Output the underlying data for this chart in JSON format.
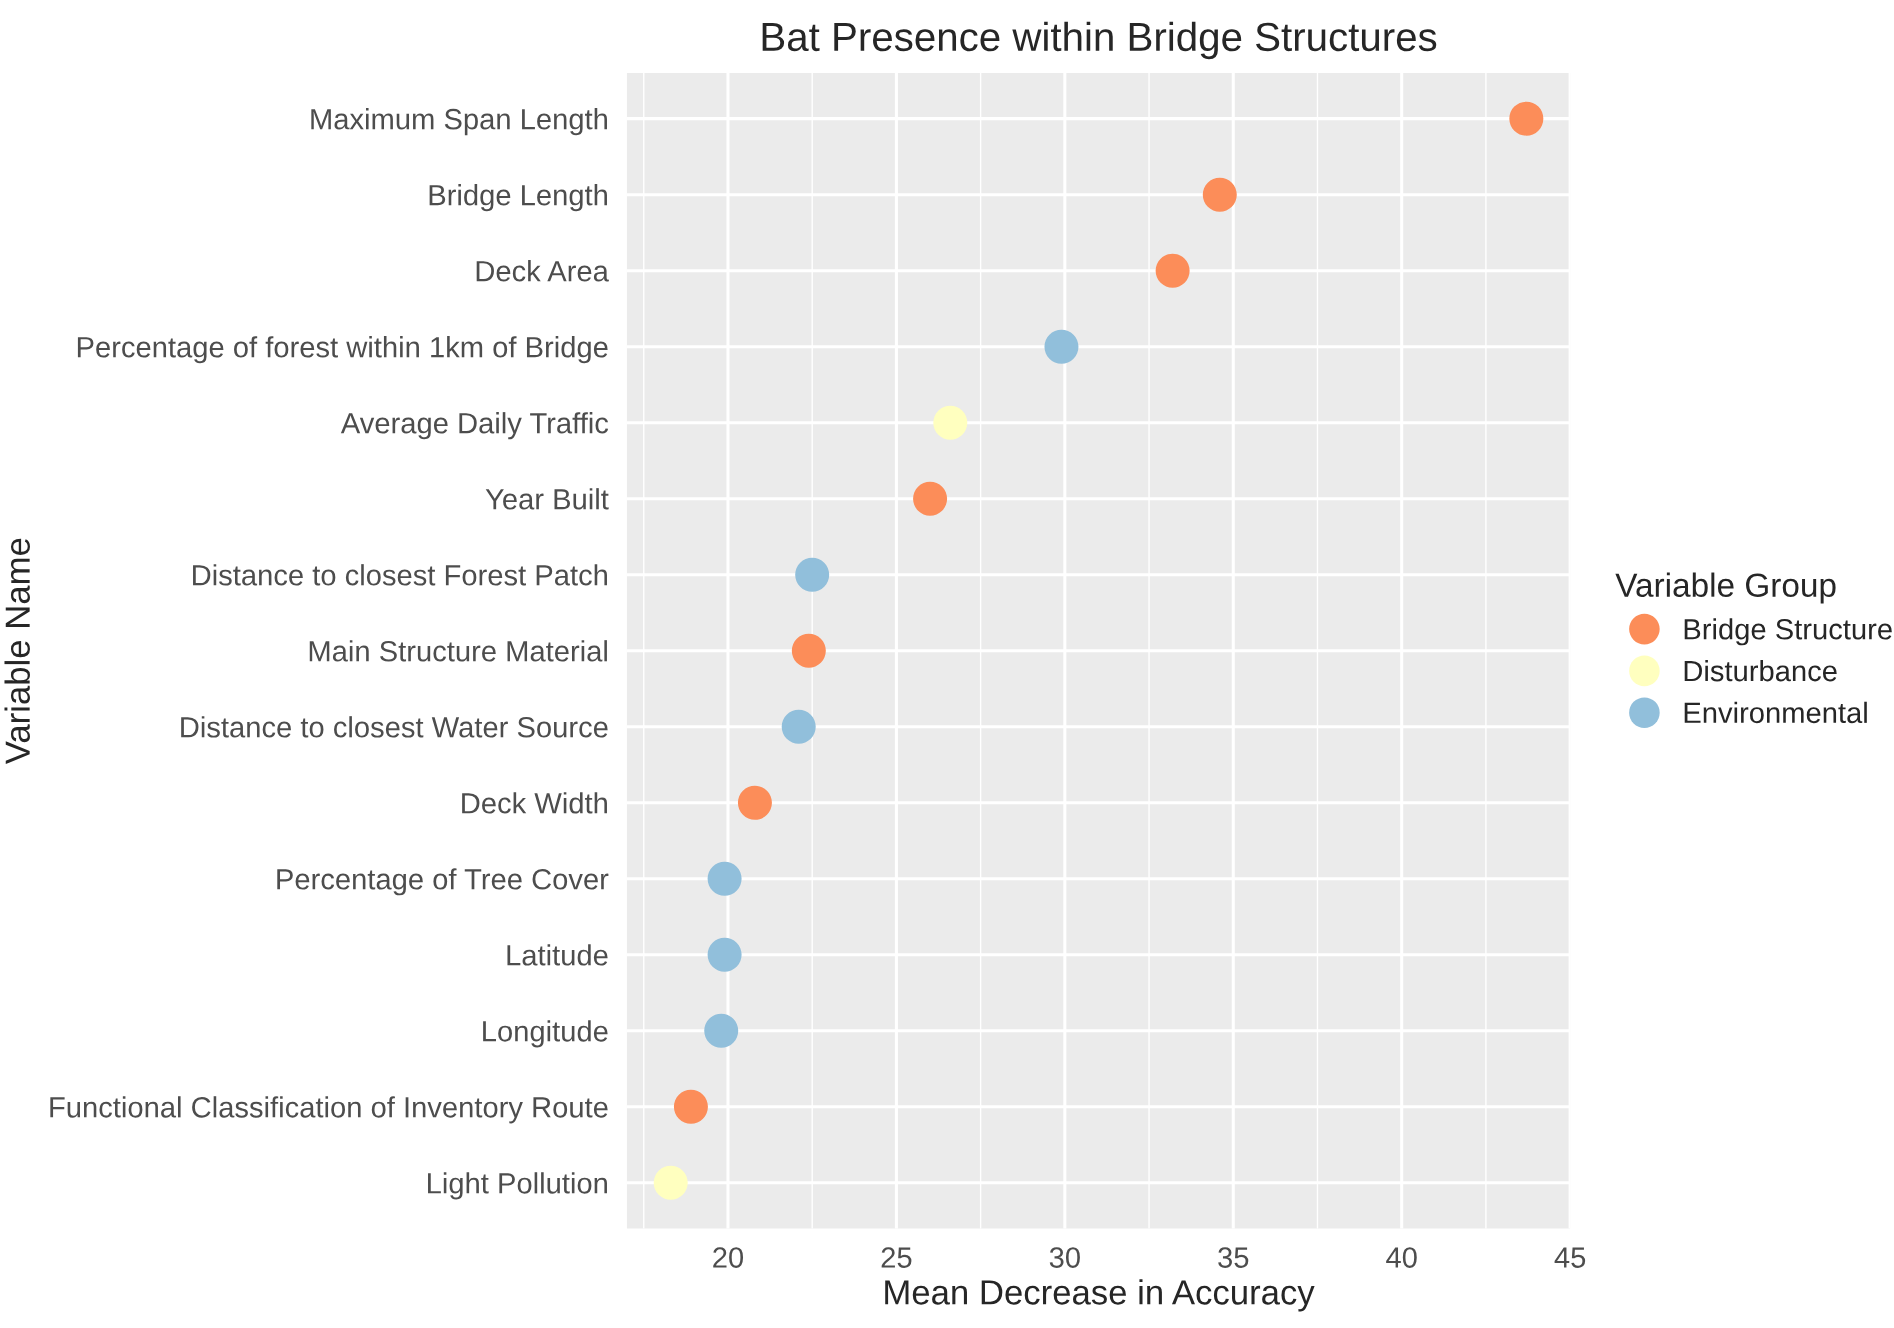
{
  "chart_data": {
    "type": "scatter",
    "orientation": "horizontal",
    "title": "Bat Presence within Bridge Structures",
    "xlabel": "Mean Decrease in Accuracy",
    "ylabel": "Variable Name",
    "legend_title": "Variable Group",
    "categories": [
      "Maximum Span Length",
      "Bridge Length",
      "Deck Area",
      "Percentage of forest within 1km of Bridge",
      "Average Daily Traffic",
      "Year Built",
      "Distance to closest Forest Patch",
      "Main Structure Material",
      "Distance to closest Water Source",
      "Deck Width",
      "Percentage of Tree Cover",
      "Latitude",
      "Longitude",
      "Functional Classification of Inventory Route",
      "Light Pollution"
    ],
    "series": [
      {
        "name": "Bridge Structure",
        "color": "#fc8d59",
        "values": [
          43.7,
          34.6,
          33.2,
          null,
          null,
          26.0,
          null,
          22.4,
          null,
          20.8,
          null,
          null,
          null,
          18.9,
          null
        ]
      },
      {
        "name": "Disturbance",
        "color": "#ffffbf",
        "values": [
          null,
          null,
          null,
          null,
          26.6,
          null,
          null,
          null,
          null,
          null,
          null,
          null,
          null,
          null,
          18.3
        ]
      },
      {
        "name": "Environmental",
        "color": "#91bfdb",
        "values": [
          null,
          null,
          null,
          29.9,
          null,
          null,
          22.5,
          null,
          22.1,
          null,
          19.9,
          19.9,
          19.8,
          null,
          null
        ]
      }
    ],
    "xlim": [
      17.0,
      45.0
    ],
    "xticks": [
      20,
      25,
      30,
      35,
      40,
      45
    ],
    "grid": true,
    "legend": "right",
    "marker": "circle"
  }
}
